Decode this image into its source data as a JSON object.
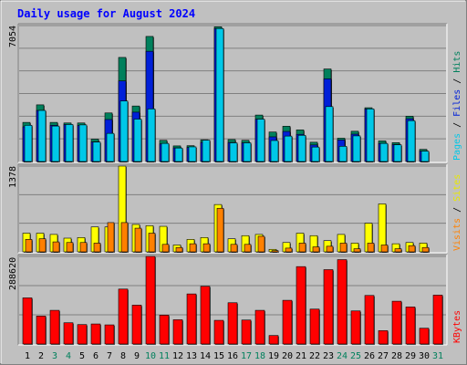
{
  "chart_data": [
    {
      "type": "bar",
      "panel": "hits-files-pages",
      "title": "Daily usage for August 2024",
      "categories": [
        "1",
        "2",
        "3",
        "4",
        "5",
        "6",
        "7",
        "8",
        "9",
        "10",
        "11",
        "12",
        "13",
        "14",
        "15",
        "16",
        "17",
        "18",
        "19",
        "20",
        "21",
        "22",
        "23",
        "24",
        "25",
        "26",
        "27",
        "28",
        "29",
        "30",
        "31"
      ],
      "weekend_days": [
        "3",
        "4",
        "10",
        "11",
        "17",
        "18",
        "24",
        "25",
        "31"
      ],
      "ymax_label": "7054",
      "ylim": [
        0,
        7054
      ],
      "grid": true,
      "series": [
        {
          "name": "Hits",
          "color": "#00805c",
          "values": [
            2030,
            2940,
            2030,
            2000,
            2000,
            1160,
            2520,
            5400,
            2880,
            6490,
            1100,
            810,
            820,
            1130,
            6990,
            1140,
            1100,
            2410,
            1530,
            1830,
            1640,
            1000,
            4800,
            1210,
            1570,
            2790,
            1070,
            980,
            2350,
            630,
            0
          ]
        },
        {
          "name": "Files",
          "color": "#0020d8",
          "values": [
            1800,
            2650,
            1880,
            1920,
            1870,
            1020,
            2180,
            4180,
            2560,
            5720,
            910,
            710,
            730,
            990,
            6900,
            990,
            970,
            2200,
            1280,
            1560,
            1410,
            860,
            4290,
            1120,
            1420,
            2730,
            940,
            880,
            2220,
            540,
            0
          ]
        },
        {
          "name": "Pages",
          "color": "#00c8e8",
          "values": [
            1880,
            2650,
            1840,
            1920,
            1900,
            1010,
            1460,
            3140,
            2200,
            2730,
            940,
            700,
            760,
            1110,
            6900,
            970,
            970,
            2200,
            1090,
            1320,
            1360,
            750,
            2850,
            790,
            1330,
            2730,
            940,
            870,
            2120,
            540,
            0
          ]
        }
      ]
    },
    {
      "type": "bar",
      "panel": "sites-visits",
      "categories": [
        "1",
        "2",
        "3",
        "4",
        "5",
        "6",
        "7",
        "8",
        "9",
        "10",
        "11",
        "12",
        "13",
        "14",
        "15",
        "16",
        "17",
        "18",
        "19",
        "20",
        "21",
        "22",
        "23",
        "24",
        "25",
        "26",
        "27",
        "28",
        "29",
        "30",
        "31"
      ],
      "ymax_label": "1378",
      "ylim": [
        0,
        1378
      ],
      "grid": true,
      "series": [
        {
          "name": "Sites",
          "color": "#ffff00",
          "values": [
            300,
            300,
            280,
            220,
            230,
            400,
            400,
            1378,
            440,
            420,
            410,
            110,
            200,
            230,
            760,
            210,
            260,
            280,
            40,
            150,
            300,
            260,
            180,
            280,
            140,
            460,
            770,
            130,
            150,
            140,
            0
          ]
        },
        {
          "name": "Visits",
          "color": "#ff8000",
          "values": [
            200,
            210,
            160,
            150,
            150,
            140,
            470,
            470,
            380,
            300,
            120,
            70,
            130,
            130,
            700,
            120,
            120,
            250,
            20,
            60,
            140,
            80,
            90,
            140,
            50,
            140,
            110,
            50,
            100,
            70,
            0
          ]
        }
      ]
    },
    {
      "type": "bar",
      "panel": "kbytes",
      "categories": [
        "1",
        "2",
        "3",
        "4",
        "5",
        "6",
        "7",
        "8",
        "9",
        "10",
        "11",
        "12",
        "13",
        "14",
        "15",
        "16",
        "17",
        "18",
        "19",
        "20",
        "21",
        "22",
        "23",
        "24",
        "25",
        "26",
        "27",
        "28",
        "29",
        "30",
        "31"
      ],
      "ymax_label": "288620",
      "ylim": [
        0,
        288620
      ],
      "grid": true,
      "series": [
        {
          "name": "KBytes",
          "color": "#ff0000",
          "values": [
            152000,
            92000,
            111000,
            70000,
            64000,
            66000,
            63000,
            181000,
            128000,
            288620,
            95000,
            80000,
            165000,
            190000,
            78000,
            136000,
            79000,
            111000,
            28000,
            144000,
            255000,
            115000,
            245000,
            278000,
            109000,
            160000,
            44000,
            141000,
            122000,
            52000,
            161000
          ]
        }
      ]
    }
  ]
}
